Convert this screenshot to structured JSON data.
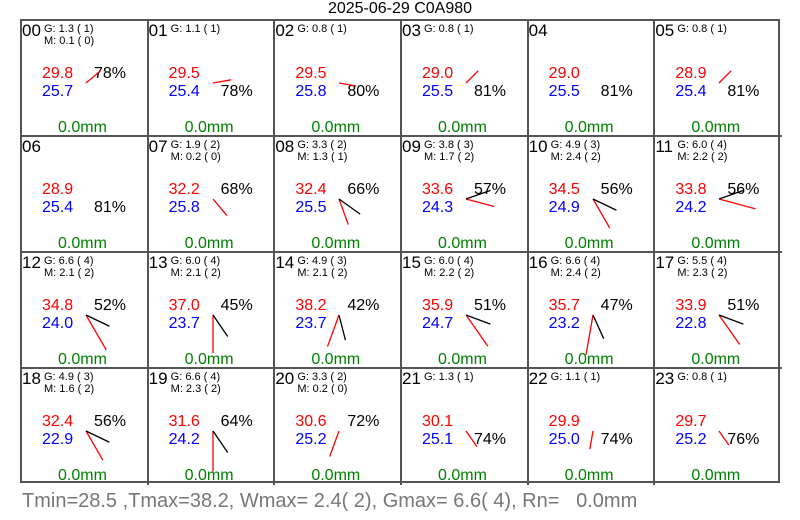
{
  "title": "2025-06-29 C0A980",
  "colors": {
    "temp": "#ff0000",
    "dew": "#0000ff",
    "rain": "#008000",
    "wind": "#ff0000",
    "grid": "#555555"
  },
  "hours": [
    {
      "hour": "00",
      "g": "G: 1.3 ( 1)",
      "m": "M: 0.1 ( 0)",
      "temp": "29.8",
      "dew": "25.7",
      "rh": "78%",
      "rain": "0.0mm"
    },
    {
      "hour": "01",
      "g": "G: 1.1 ( 1)",
      "m": "",
      "temp": "29.5",
      "dew": "25.4",
      "rh": "78%",
      "rain": "0.0mm"
    },
    {
      "hour": "02",
      "g": "G: 0.8 ( 1)",
      "m": "",
      "temp": "29.5",
      "dew": "25.8",
      "rh": "80%",
      "rain": "0.0mm"
    },
    {
      "hour": "03",
      "g": "G: 0.8 ( 1)",
      "m": "",
      "temp": "29.0",
      "dew": "25.5",
      "rh": "81%",
      "rain": "0.0mm"
    },
    {
      "hour": "04",
      "g": "",
      "m": "",
      "temp": "29.0",
      "dew": "25.5",
      "rh": "81%",
      "rain": "0.0mm"
    },
    {
      "hour": "05",
      "g": "G: 0.8 ( 1)",
      "m": "",
      "temp": "28.9",
      "dew": "25.4",
      "rh": "81%",
      "rain": "0.0mm"
    },
    {
      "hour": "06",
      "g": "",
      "m": "",
      "temp": "28.9",
      "dew": "25.4",
      "rh": "81%",
      "rain": "0.0mm"
    },
    {
      "hour": "07",
      "g": "G: 1.9 ( 2)",
      "m": "M: 0.2 ( 0)",
      "temp": "32.2",
      "dew": "25.8",
      "rh": "68%",
      "rain": "0.0mm"
    },
    {
      "hour": "08",
      "g": "G: 3.3 ( 2)",
      "m": "M: 1.3 ( 1)",
      "temp": "32.4",
      "dew": "25.5",
      "rh": "66%",
      "rain": "0.0mm"
    },
    {
      "hour": "09",
      "g": "G: 3.8 ( 3)",
      "m": "M: 1.7 ( 2)",
      "temp": "33.6",
      "dew": "24.3",
      "rh": "57%",
      "rain": "0.0mm"
    },
    {
      "hour": "10",
      "g": "G: 4.9 ( 3)",
      "m": "M: 2.4 ( 2)",
      "temp": "34.5",
      "dew": "24.9",
      "rh": "56%",
      "rain": "0.0mm"
    },
    {
      "hour": "11",
      "g": "G: 6.0 ( 4)",
      "m": "M: 2.2 ( 2)",
      "temp": "33.8",
      "dew": "24.2",
      "rh": "56%",
      "rain": "0.0mm"
    },
    {
      "hour": "12",
      "g": "G: 6.6 ( 4)",
      "m": "M: 2.1 ( 2)",
      "temp": "34.8",
      "dew": "24.0",
      "rh": "52%",
      "rain": "0.0mm"
    },
    {
      "hour": "13",
      "g": "G: 6.0 ( 4)",
      "m": "M: 2.1 ( 2)",
      "temp": "37.0",
      "dew": "23.7",
      "rh": "45%",
      "rain": "0.0mm"
    },
    {
      "hour": "14",
      "g": "G: 4.9 ( 3)",
      "m": "M: 2.1 ( 2)",
      "temp": "38.2",
      "dew": "23.7",
      "rh": "42%",
      "rain": "0.0mm"
    },
    {
      "hour": "15",
      "g": "G: 6.0 ( 4)",
      "m": "M: 2.2 ( 2)",
      "temp": "35.9",
      "dew": "24.7",
      "rh": "51%",
      "rain": "0.0mm"
    },
    {
      "hour": "16",
      "g": "G: 6.6 ( 4)",
      "m": "M: 2.4 ( 2)",
      "temp": "35.7",
      "dew": "23.2",
      "rh": "47%",
      "rain": "0.0mm"
    },
    {
      "hour": "17",
      "g": "G: 5.5 ( 4)",
      "m": "M: 2.3 ( 2)",
      "temp": "33.9",
      "dew": "22.8",
      "rh": "51%",
      "rain": "0.0mm"
    },
    {
      "hour": "18",
      "g": "G: 4.9 ( 3)",
      "m": "M: 1.6 ( 2)",
      "temp": "32.4",
      "dew": "22.9",
      "rh": "56%",
      "rain": "0.0mm"
    },
    {
      "hour": "19",
      "g": "G: 6.6 ( 4)",
      "m": "M: 2.3 ( 2)",
      "temp": "31.6",
      "dew": "24.2",
      "rh": "64%",
      "rain": "0.0mm"
    },
    {
      "hour": "20",
      "g": "G: 3.3 ( 2)",
      "m": "M: 0.2 ( 0)",
      "temp": "30.6",
      "dew": "25.2",
      "rh": "72%",
      "rain": "0.0mm"
    },
    {
      "hour": "21",
      "g": "G: 1.3 ( 1)",
      "m": "",
      "temp": "30.1",
      "dew": "25.1",
      "rh": "74%",
      "rain": "0.0mm"
    },
    {
      "hour": "22",
      "g": "G: 1.1 ( 1)",
      "m": "",
      "temp": "29.9",
      "dew": "25.0",
      "rh": "74%",
      "rain": "0.0mm"
    },
    {
      "hour": "23",
      "g": "G: 0.8 ( 1)",
      "m": "",
      "temp": "29.7",
      "dew": "25.2",
      "rh": "76%",
      "rain": "0.0mm"
    }
  ],
  "footer": "Tmin=28.5 ,Tmax=38.2, Wmax= 2.4( 2), Gmax= 6.6( 4), Rn=   0.0mm"
}
